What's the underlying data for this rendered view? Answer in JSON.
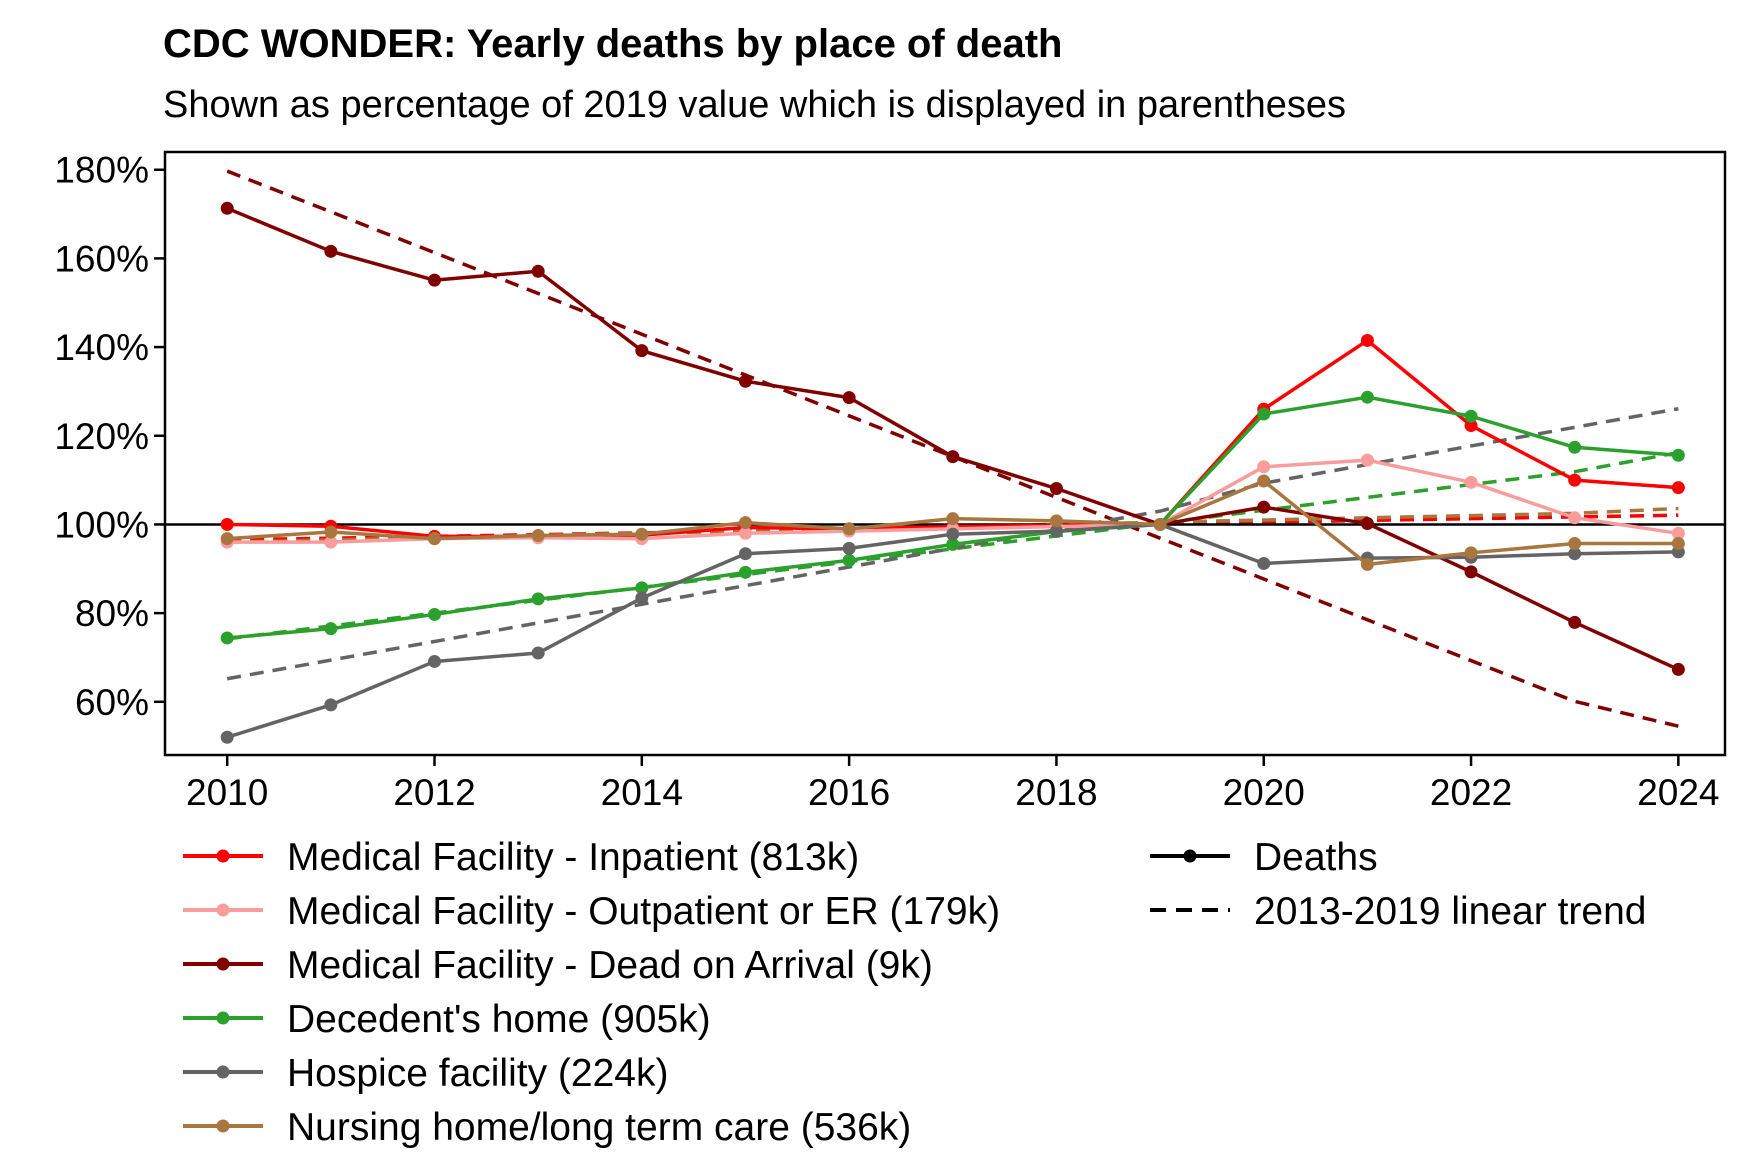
{
  "chart_data": {
    "type": "line",
    "title": "CDC WONDER: Yearly deaths by place of death",
    "subtitle": "Shown as percentage of 2019 value which is displayed in parentheses",
    "xlabel": "",
    "ylabel": "",
    "x": [
      2010,
      2011,
      2012,
      2013,
      2014,
      2015,
      2016,
      2017,
      2018,
      2019,
      2020,
      2021,
      2022,
      2023,
      2024
    ],
    "xlim": [
      2009.4,
      2024.45
    ],
    "ylim": [
      48,
      184
    ],
    "x_ticks": [
      2010,
      2012,
      2014,
      2016,
      2018,
      2020,
      2022,
      2024
    ],
    "y_ticks": [
      60,
      80,
      100,
      120,
      140,
      160,
      180
    ],
    "y_tick_labels": [
      "60%",
      "80%",
      "100%",
      "120%",
      "140%",
      "160%",
      "180%"
    ],
    "reference_line": 100,
    "grid": false,
    "legend_position": "bottom",
    "series": [
      {
        "name": "Medical Facility - Inpatient (813k)",
        "color": "#ff0000",
        "values": [
          100,
          99.6,
          97.3,
          97.3,
          97.6,
          99.3,
          99,
          99.5,
          99.8,
          100,
          126,
          141.5,
          122.3,
          110,
          108.3
        ],
        "trend": [
          96.5,
          96.9,
          97.3,
          97.7,
          98.1,
          98.5,
          98.9,
          99.3,
          99.7,
          100.1,
          100.5,
          100.9,
          101.3,
          101.7,
          102.1
        ]
      },
      {
        "name": "Medical Facility - Outpatient or ER (179k)",
        "color": "#f99c9c",
        "values": [
          96,
          96,
          96.8,
          97,
          96.8,
          98,
          98.5,
          99,
          99.5,
          100,
          113,
          114.5,
          109.5,
          101.5,
          98
        ]
      },
      {
        "name": "Medical Facility - Dead on Arrival (9k)",
        "color": "#800000",
        "values": [
          171.3,
          161.6,
          155.1,
          157.1,
          139.2,
          132.3,
          128.6,
          115.3,
          108.1,
          100,
          103.9,
          100.2,
          89.3,
          77.9,
          67.3
        ],
        "trend": [
          179.7,
          170.5,
          161.3,
          152.1,
          142.9,
          133.7,
          124.5,
          115.3,
          106.1,
          96.9,
          87.7,
          78.5,
          69.3,
          60.1,
          54.5
        ]
      },
      {
        "name": "Decedent's home (905k)",
        "color": "#2ca02c",
        "values": [
          74.4,
          76.5,
          79.7,
          83.2,
          85.7,
          89.2,
          91.9,
          95.5,
          98.4,
          100,
          124.9,
          128.7,
          124.4,
          117.4,
          115.6
        ],
        "trend": [
          74.2,
          77.1,
          80,
          82.9,
          85.8,
          88.7,
          91.6,
          94.5,
          97.4,
          100.3,
          103.2,
          106.1,
          109,
          111.9,
          116.2
        ]
      },
      {
        "name": "Hospice facility (224k)",
        "color": "#646464",
        "values": [
          52,
          59.3,
          69.1,
          71,
          83.4,
          93.4,
          94.6,
          97.8,
          98.5,
          100,
          91.2,
          92.4,
          92.6,
          93.4,
          93.8
        ],
        "trend": [
          65.2,
          69.4,
          73.6,
          77.8,
          82,
          86.2,
          90.4,
          94.6,
          98.8,
          103,
          109.3,
          113.5,
          117.7,
          121.9,
          126.1
        ]
      },
      {
        "name": "Nursing home/long term care (536k)",
        "color": "#a8763e",
        "values": [
          96.8,
          98.3,
          96.8,
          97.5,
          97.8,
          100.4,
          99,
          101.3,
          100.8,
          100,
          109.8,
          91,
          93.6,
          95.7,
          95.7
        ],
        "trend": [
          96,
          96.5,
          97,
          97.5,
          98,
          98.5,
          99,
          99.5,
          100,
          100.5,
          101,
          101.5,
          102,
          102.5,
          103.6
        ]
      }
    ],
    "legend_extra": [
      {
        "name": "Deaths",
        "color": "#000000",
        "style": "solid-with-marker"
      },
      {
        "name": "2013-2019 linear trend",
        "color": "#000000",
        "style": "dashed"
      }
    ]
  }
}
